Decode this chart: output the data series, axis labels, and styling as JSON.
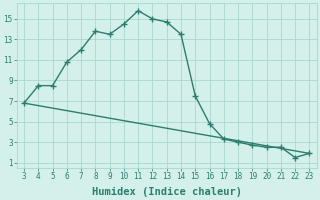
{
  "xlabel": "Humidex (Indice chaleur)",
  "line1_x": [
    3,
    4,
    5,
    6,
    7,
    8,
    9,
    10,
    11,
    12,
    13,
    14,
    15,
    16,
    17,
    18,
    19,
    20,
    21,
    22,
    23
  ],
  "line1_y": [
    6.8,
    8.5,
    8.5,
    10.8,
    12.0,
    13.8,
    13.5,
    14.5,
    15.8,
    15.0,
    14.7,
    13.5,
    7.5,
    4.8,
    3.3,
    3.0,
    2.7,
    2.5,
    2.5,
    1.5,
    1.9
  ],
  "line2_x": [
    3,
    23
  ],
  "line2_y": [
    6.8,
    1.9
  ],
  "line_color": "#2d7d6e",
  "marker": "+",
  "markersize": 4,
  "markeredgewidth": 1.0,
  "linewidth": 1.0,
  "bg_color": "#d4f0eb",
  "grid_color": "#a8d8d0",
  "xlim": [
    2.5,
    23.5
  ],
  "ylim": [
    0.5,
    16.5
  ],
  "xticks": [
    3,
    4,
    5,
    6,
    7,
    8,
    9,
    10,
    11,
    12,
    13,
    14,
    15,
    16,
    17,
    18,
    19,
    20,
    21,
    22,
    23
  ],
  "yticks": [
    1,
    3,
    5,
    7,
    9,
    11,
    13,
    15
  ],
  "tick_fontsize": 5.5,
  "label_fontsize": 7.5
}
